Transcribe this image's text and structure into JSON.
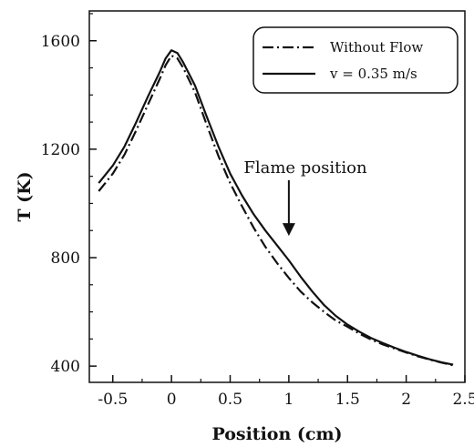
{
  "chart_data": {
    "type": "line",
    "title": "",
    "xlabel": "Position (cm)",
    "ylabel": "T (K)",
    "xlim": [
      -0.7,
      2.5
    ],
    "ylim": [
      340,
      1710
    ],
    "x_ticks": [
      -0.5,
      0,
      0.5,
      1,
      1.5,
      2,
      2.5
    ],
    "x_tick_labels": [
      "-0.5",
      "0",
      "0.5",
      "1",
      "1.5",
      "2",
      "2.5"
    ],
    "y_ticks": [
      400,
      800,
      1200,
      1600
    ],
    "y_tick_labels": [
      "400",
      "800",
      "1200",
      "1600"
    ],
    "grid": false,
    "legend_position": "top-right",
    "series": [
      {
        "name": "Without Flow",
        "style": "dash-dot",
        "color": "#111111",
        "x": [
          -0.62,
          -0.5,
          -0.4,
          -0.3,
          -0.2,
          -0.1,
          -0.05,
          0,
          0.05,
          0.1,
          0.2,
          0.3,
          0.4,
          0.5,
          0.6,
          0.7,
          0.8,
          0.9,
          1.0,
          1.1,
          1.2,
          1.3,
          1.4,
          1.5,
          1.6,
          1.7,
          1.8,
          1.9,
          2.0,
          2.1,
          2.2,
          2.3,
          2.4
        ],
        "y": [
          1045,
          1110,
          1180,
          1270,
          1365,
          1460,
          1510,
          1545,
          1535,
          1500,
          1410,
          1290,
          1175,
          1075,
          990,
          910,
          840,
          780,
          725,
          675,
          635,
          600,
          568,
          545,
          520,
          498,
          480,
          465,
          450,
          436,
          424,
          413,
          403
        ]
      },
      {
        "name": "v = 0.35 m/s",
        "style": "solid",
        "color": "#111111",
        "x": [
          -0.62,
          -0.5,
          -0.4,
          -0.3,
          -0.2,
          -0.1,
          -0.05,
          0,
          0.05,
          0.1,
          0.2,
          0.3,
          0.4,
          0.5,
          0.6,
          0.7,
          0.8,
          0.9,
          1.0,
          1.1,
          1.2,
          1.3,
          1.4,
          1.5,
          1.6,
          1.7,
          1.8,
          1.9,
          2.0,
          2.1,
          2.2,
          2.3,
          2.4
        ],
        "y": [
          1075,
          1140,
          1210,
          1300,
          1395,
          1485,
          1535,
          1565,
          1555,
          1520,
          1435,
          1320,
          1210,
          1110,
          1030,
          960,
          900,
          845,
          790,
          730,
          675,
          625,
          585,
          553,
          527,
          504,
          485,
          468,
          452,
          438,
          425,
          414,
          405
        ]
      }
    ],
    "annotations": [
      {
        "text": "Flame position",
        "arrow_to": {
          "x": 1.0,
          "y": 860
        }
      }
    ]
  }
}
